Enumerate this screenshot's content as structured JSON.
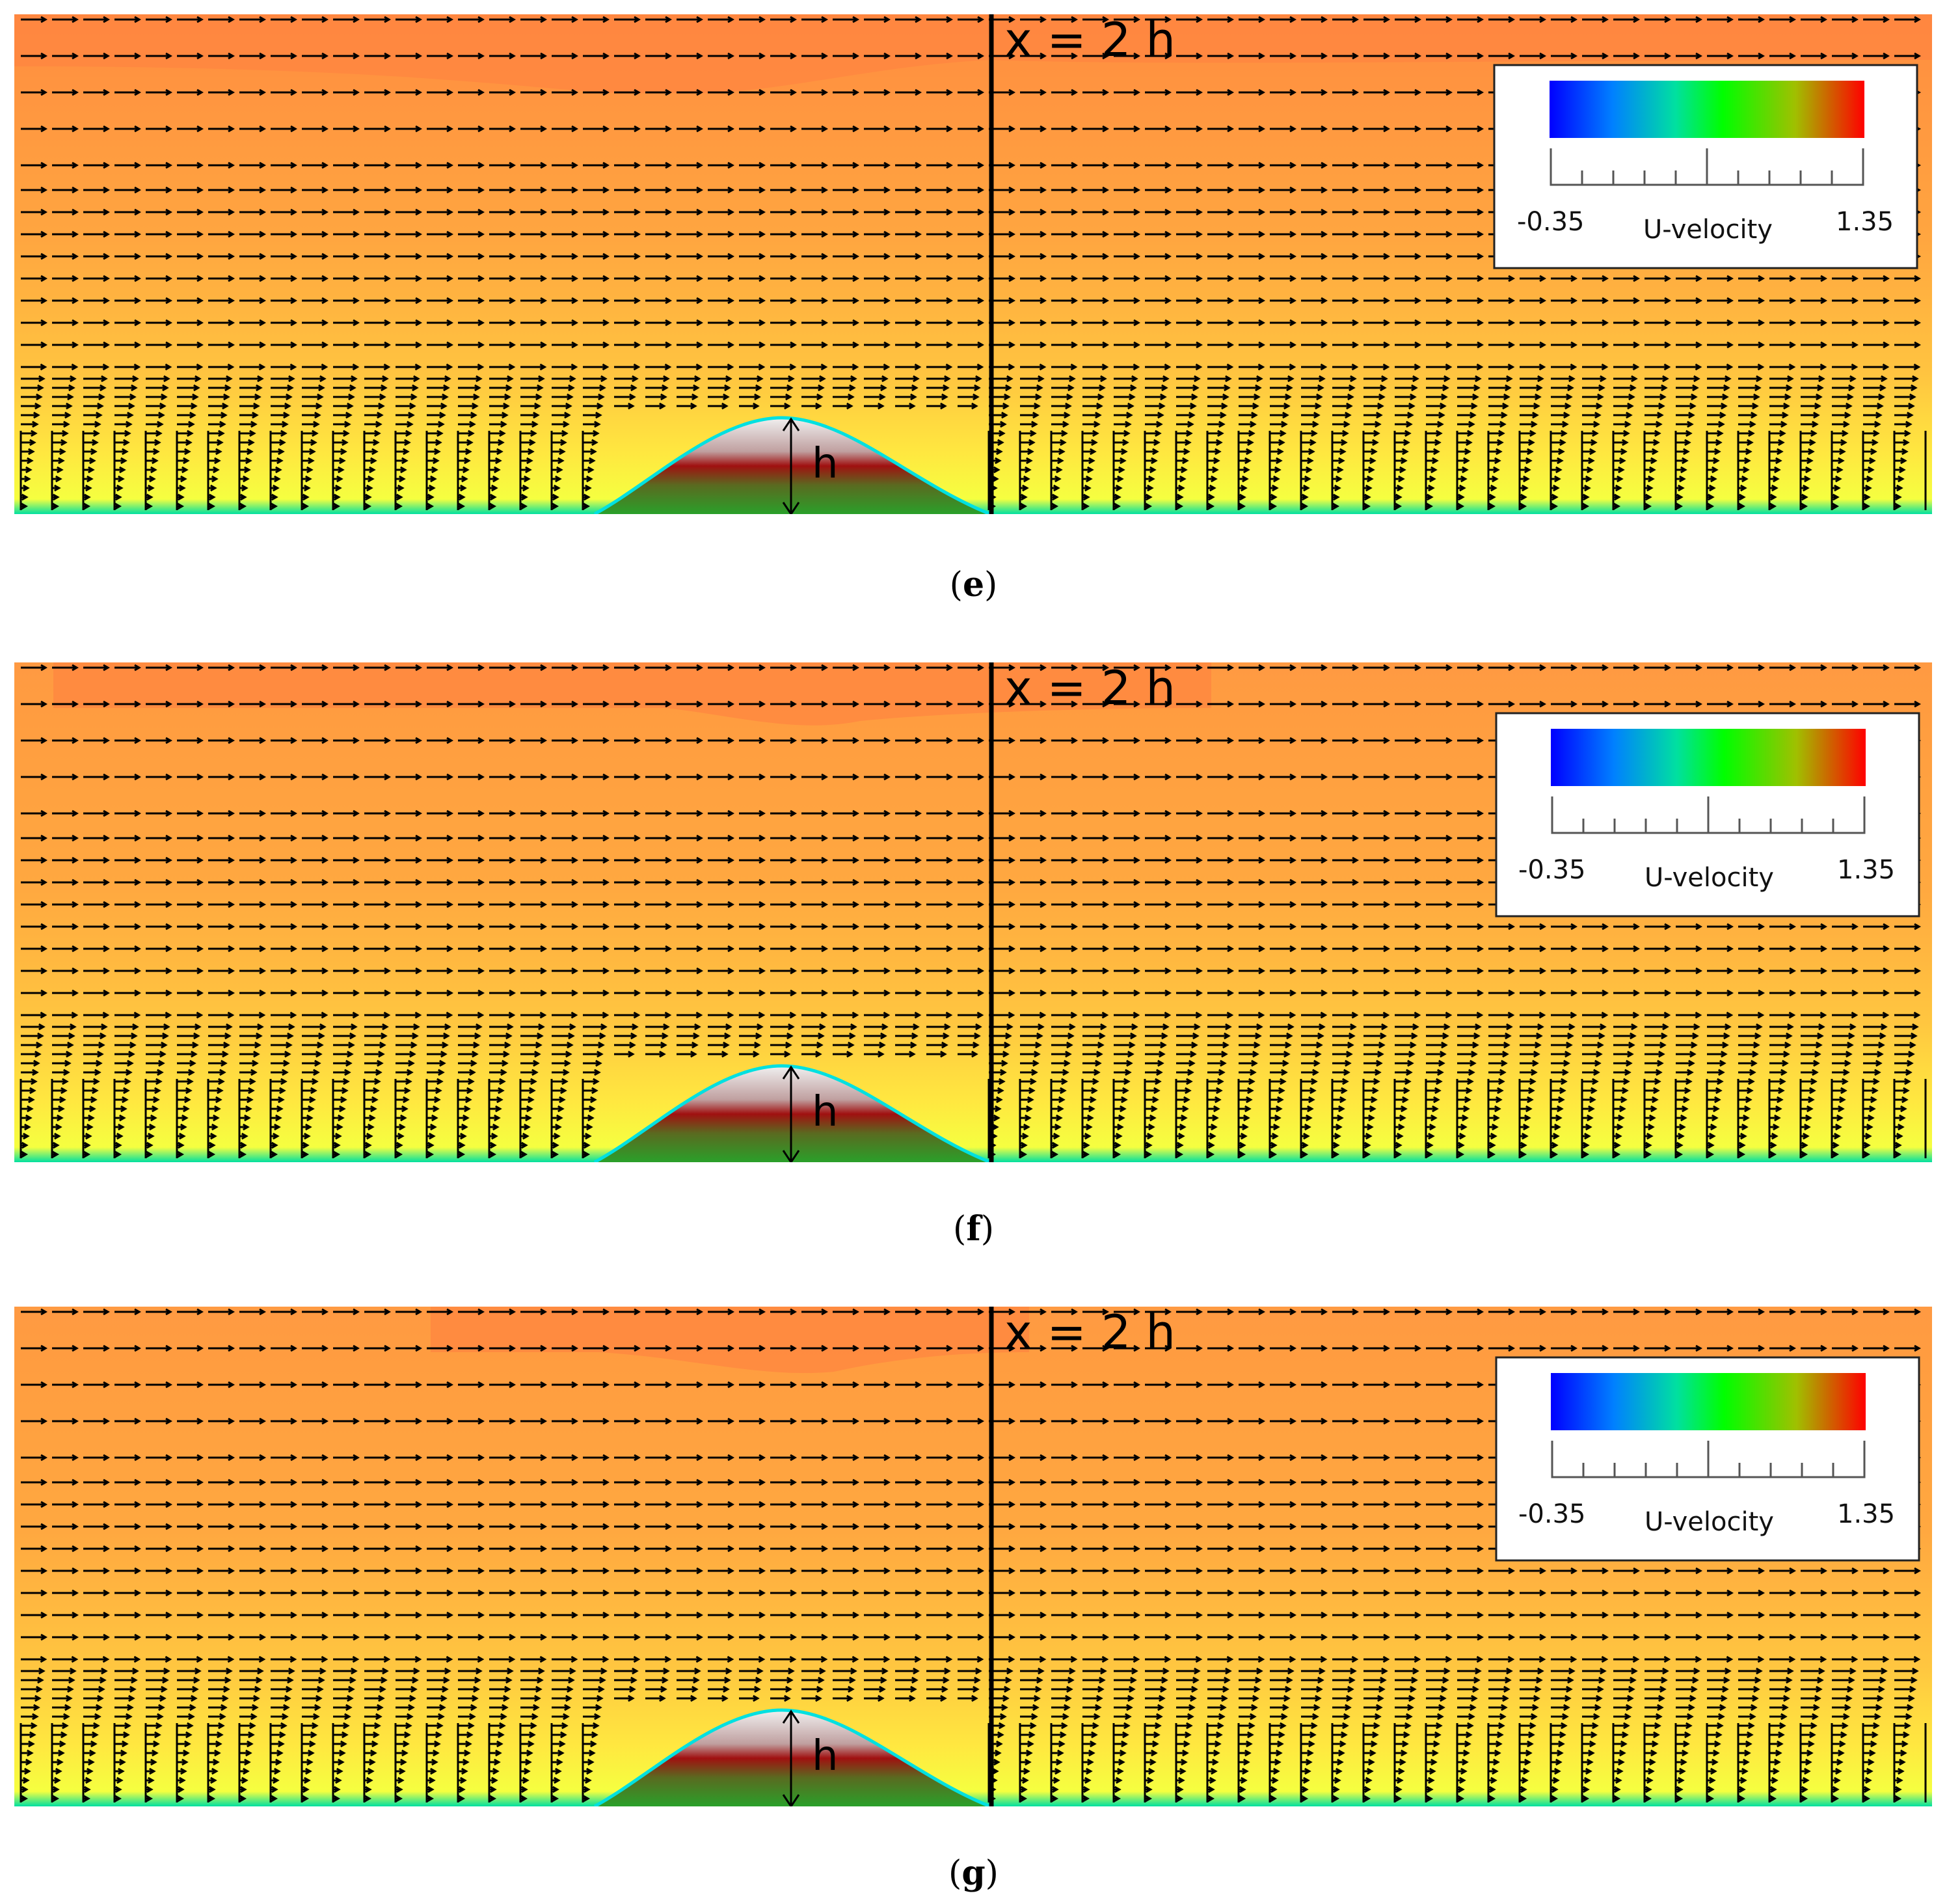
{
  "panels": [
    {
      "id": "e",
      "caption_letter": "e",
      "line_label": "x = 2 h",
      "height_label": "h"
    },
    {
      "id": "f",
      "caption_letter": "f",
      "line_label": "x = 2 h",
      "height_label": "h"
    },
    {
      "id": "g",
      "caption_letter": "g",
      "line_label": "x = 2 h",
      "height_label": "h"
    }
  ],
  "legend": {
    "title": "U-velocity",
    "min": "-0.35",
    "max": "1.35",
    "colormap": [
      "#0000ff",
      "#0080ff",
      "#00e0a0",
      "#00ff00",
      "#a0c000",
      "#ff0000"
    ]
  },
  "colors": {
    "top_flow": "#ff8c42",
    "mid_flow": "#ffa640",
    "lower_flow": "#ffd040",
    "near_wall": "#f5ff40",
    "wall_layer": "#00e0a0",
    "hill_top": "#f0f0f0",
    "hill_mid": "#a01010",
    "hill_base": "#2aa02a"
  }
}
